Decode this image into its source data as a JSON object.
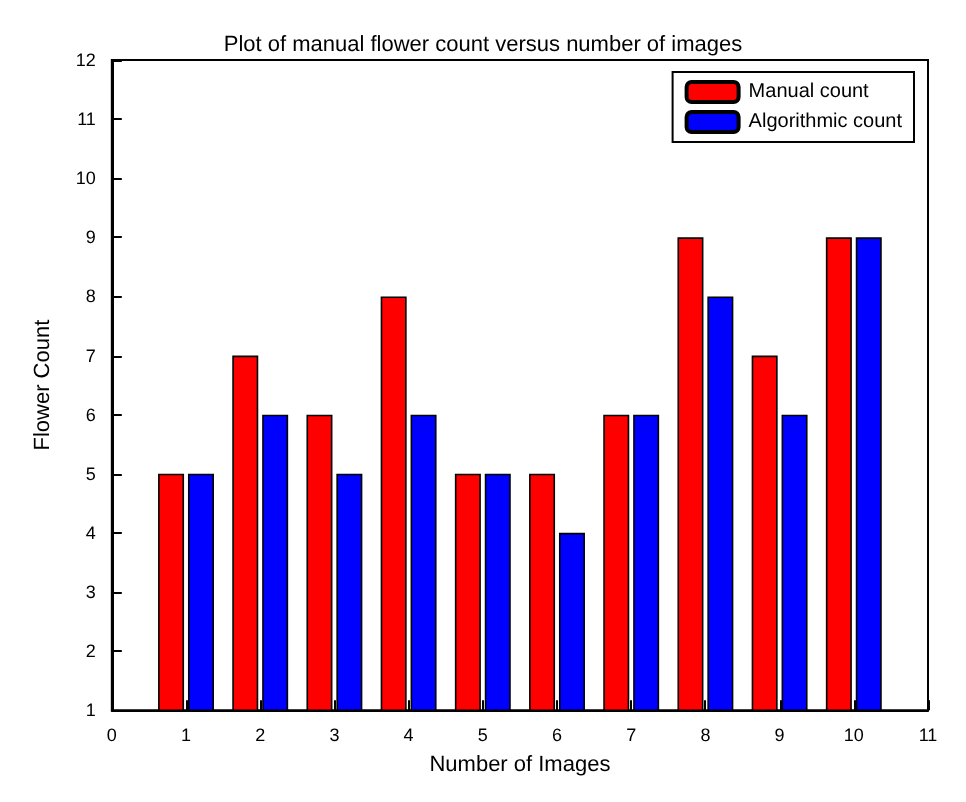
{
  "chart_data": {
    "type": "bar",
    "title": "Plot of manual flower count versus number of images",
    "xlabel": "Number of Images",
    "ylabel": "Flower Count",
    "x": [
      1,
      2,
      3,
      4,
      5,
      6,
      7,
      8,
      9,
      10
    ],
    "series": [
      {
        "name": "Manual count",
        "color": "#ff0000",
        "values": [
          5,
          7,
          6,
          8,
          5,
          5,
          6,
          9,
          7,
          9
        ]
      },
      {
        "name": "Algorithmic count",
        "color": "#0000ff",
        "values": [
          5,
          6,
          5,
          6,
          5,
          4,
          6,
          8,
          6,
          9
        ]
      }
    ],
    "xlim": [
      0,
      11
    ],
    "xticks": [
      0,
      1,
      2,
      3,
      4,
      5,
      6,
      7,
      8,
      9,
      10,
      11
    ],
    "ylim": [
      1,
      12
    ],
    "yticks": [
      1,
      2,
      3,
      4,
      5,
      6,
      7,
      8,
      9,
      10,
      11,
      12
    ],
    "grid": false,
    "legend": "top right"
  }
}
